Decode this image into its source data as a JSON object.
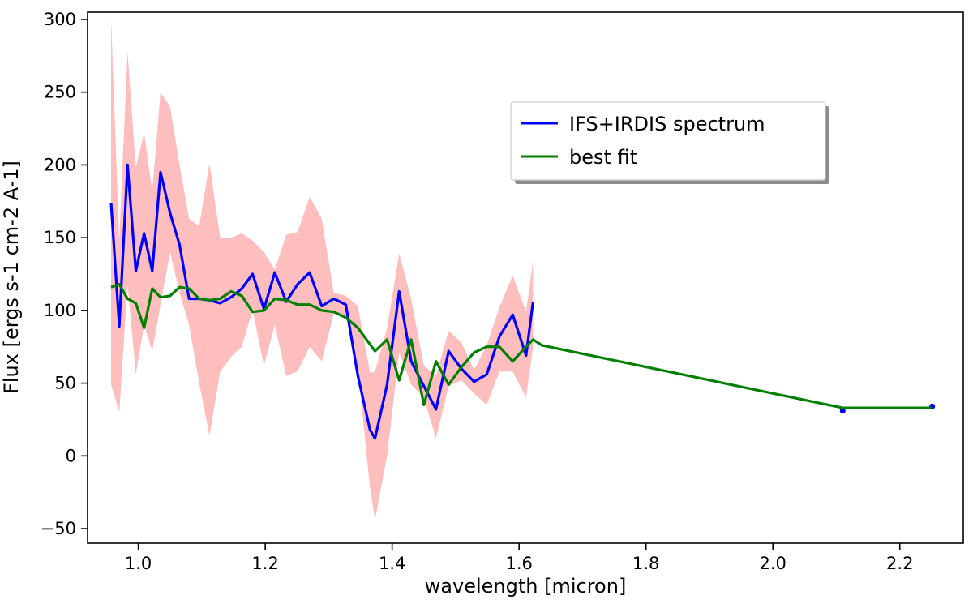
{
  "chart_data": {
    "type": "line",
    "title": "",
    "xlabel": "wavelength [micron]",
    "ylabel": "Flux [ergs s-1 cm-2 A-1]",
    "xlim": [
      0.92,
      2.3
    ],
    "ylim": [
      -60,
      305
    ],
    "xticks": [
      1.0,
      1.2,
      1.4,
      1.6,
      1.8,
      2.0,
      2.2
    ],
    "xtick_labels": [
      "1.0",
      "1.2",
      "1.4",
      "1.6",
      "1.8",
      "2.0",
      "2.2"
    ],
    "yticks": [
      -50,
      0,
      50,
      100,
      150,
      200,
      250,
      300
    ],
    "ytick_labels": [
      "−50",
      "0",
      "50",
      "100",
      "150",
      "200",
      "250",
      "300"
    ],
    "grid": false,
    "legend": {
      "location": "upper-center-right"
    },
    "colors": {
      "spectrum": "#0000ff",
      "fit": "#007f00",
      "error_band": "#ffb3b3"
    },
    "series": [
      {
        "name": "IFS+IRDIS spectrum",
        "x": [
          0.957,
          0.97,
          0.983,
          0.996,
          1.009,
          1.022,
          1.035,
          1.05,
          1.065,
          1.08,
          1.096,
          1.112,
          1.129,
          1.146,
          1.163,
          1.18,
          1.198,
          1.215,
          1.233,
          1.251,
          1.27,
          1.289,
          1.308,
          1.327,
          1.346,
          1.365,
          1.373,
          1.392,
          1.411,
          1.43,
          1.45,
          1.469,
          1.489,
          1.509,
          1.529,
          1.549,
          1.569,
          1.59,
          1.611,
          1.622,
          2.11,
          2.251
        ],
        "y": [
          174,
          89,
          200,
          127,
          153,
          127,
          195,
          167,
          145,
          108,
          108,
          107,
          105,
          109,
          115,
          125,
          101,
          126,
          106,
          118,
          126,
          103,
          108,
          104,
          55,
          18,
          12,
          49,
          113,
          65,
          48,
          32,
          72,
          60,
          51,
          56,
          82,
          97,
          69,
          106,
          31,
          34
        ]
      },
      {
        "name": "best fit",
        "x": [
          0.957,
          0.97,
          0.983,
          0.996,
          1.009,
          1.022,
          1.035,
          1.05,
          1.065,
          1.08,
          1.096,
          1.112,
          1.129,
          1.146,
          1.163,
          1.18,
          1.198,
          1.215,
          1.233,
          1.251,
          1.27,
          1.289,
          1.308,
          1.327,
          1.346,
          1.373,
          1.392,
          1.411,
          1.43,
          1.45,
          1.469,
          1.489,
          1.509,
          1.529,
          1.549,
          1.569,
          1.59,
          1.611,
          1.622,
          1.636,
          2.11,
          2.251
        ],
        "y": [
          116,
          118,
          108,
          105,
          88,
          115,
          109,
          110,
          116,
          115,
          108,
          107,
          108,
          113,
          110,
          99,
          100,
          108,
          107,
          104,
          104,
          100,
          99,
          95,
          88,
          72,
          80,
          52,
          80,
          35,
          65,
          49,
          61,
          71,
          75,
          75,
          65,
          75,
          80,
          76,
          33,
          33
        ]
      }
    ],
    "error_band": {
      "x": [
        0.957,
        0.97,
        0.983,
        0.996,
        1.009,
        1.022,
        1.035,
        1.05,
        1.065,
        1.08,
        1.096,
        1.112,
        1.129,
        1.146,
        1.163,
        1.18,
        1.198,
        1.215,
        1.233,
        1.251,
        1.27,
        1.289,
        1.308,
        1.327,
        1.346,
        1.365,
        1.373,
        1.392,
        1.411,
        1.43,
        1.45,
        1.469,
        1.489,
        1.509,
        1.529,
        1.549,
        1.569,
        1.59,
        1.611,
        1.622
      ],
      "lower": [
        49,
        30,
        118,
        56,
        90,
        72,
        104,
        140,
        112,
        90,
        50,
        14,
        58,
        68,
        75,
        100,
        62,
        90,
        55,
        58,
        75,
        65,
        98,
        96,
        60,
        -22,
        -44,
        0,
        71,
        49,
        40,
        12,
        48,
        52,
        43,
        35,
        58,
        58,
        40,
        75
      ],
      "upper": [
        300,
        148,
        278,
        198,
        222,
        182,
        250,
        240,
        200,
        163,
        158,
        201,
        150,
        150,
        153,
        148,
        140,
        128,
        152,
        154,
        178,
        163,
        112,
        110,
        103,
        57,
        58,
        88,
        139,
        108,
        62,
        55,
        86,
        78,
        59,
        76,
        102,
        124,
        99,
        134
      ]
    }
  }
}
